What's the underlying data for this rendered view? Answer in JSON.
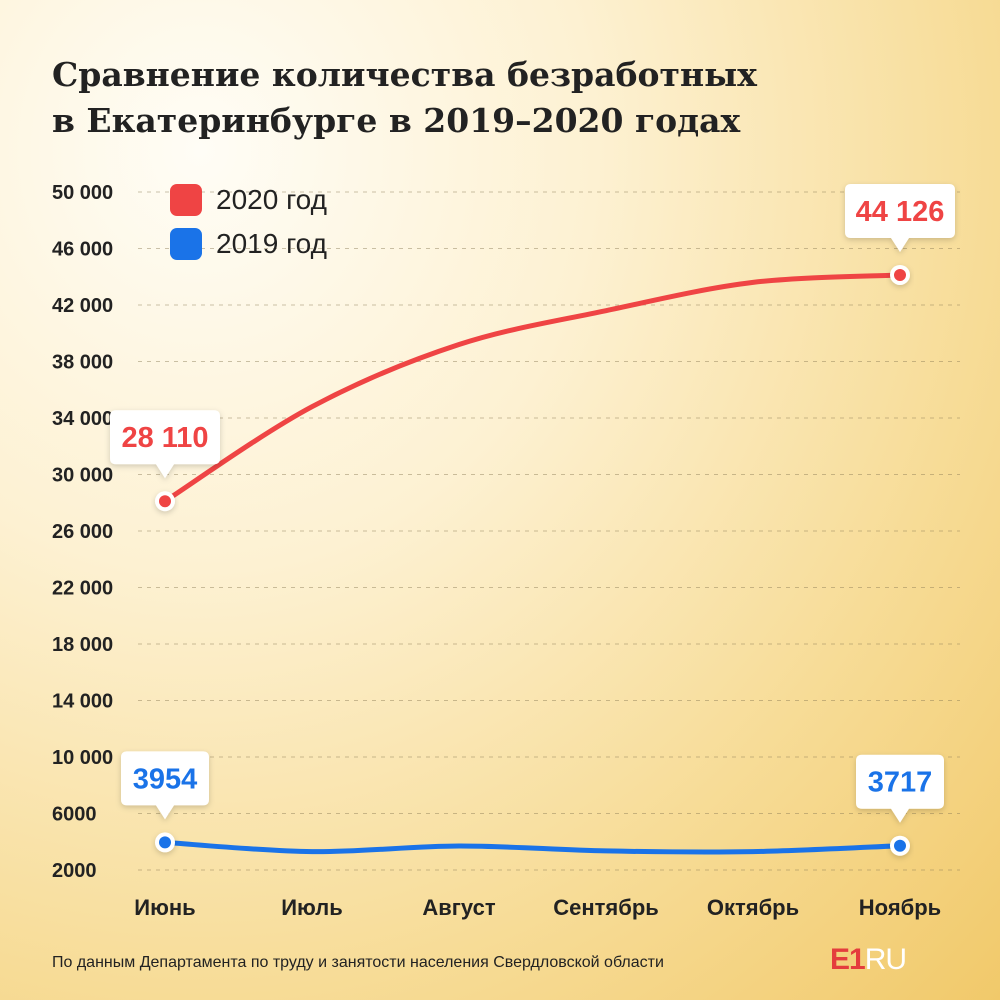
{
  "title_lines": [
    "Сравнение количества безработных",
    "в Екатеринбурге в 2019–2020 годах"
  ],
  "source": "По данным Департамента по труду и занятости населения Свердловской области",
  "logo": {
    "main": "E1",
    "suffix": "RU"
  },
  "colors": {
    "series_2020": "#ef4444",
    "series_2019": "#1a73e8",
    "text": "#222222"
  },
  "chart_data": {
    "type": "line",
    "categories": [
      "Июнь",
      "Июль",
      "Август",
      "Сентябрь",
      "Октябрь",
      "Ноябрь"
    ],
    "yticks": [
      "50 000",
      "46 000",
      "42 000",
      "38 000",
      "34 000",
      "30 000",
      "26 000",
      "22 000",
      "18 000",
      "14 000",
      "10 000",
      "6000",
      "2000"
    ],
    "ylim": [
      2000,
      50000
    ],
    "grid": "horizontal dashed",
    "legend_position": "top-left",
    "series": [
      {
        "name": "2020 год",
        "color": "#ef4444",
        "values": [
          28110,
          34800,
          39200,
          41600,
          43600,
          44126
        ],
        "labels": [
          "28 110",
          "",
          "",
          "",
          "",
          "44 126"
        ]
      },
      {
        "name": "2019 год",
        "color": "#1a73e8",
        "values": [
          3954,
          3300,
          3700,
          3350,
          3300,
          3717
        ],
        "labels": [
          "3954",
          "",
          "",
          "",
          "",
          "3717"
        ]
      }
    ]
  }
}
